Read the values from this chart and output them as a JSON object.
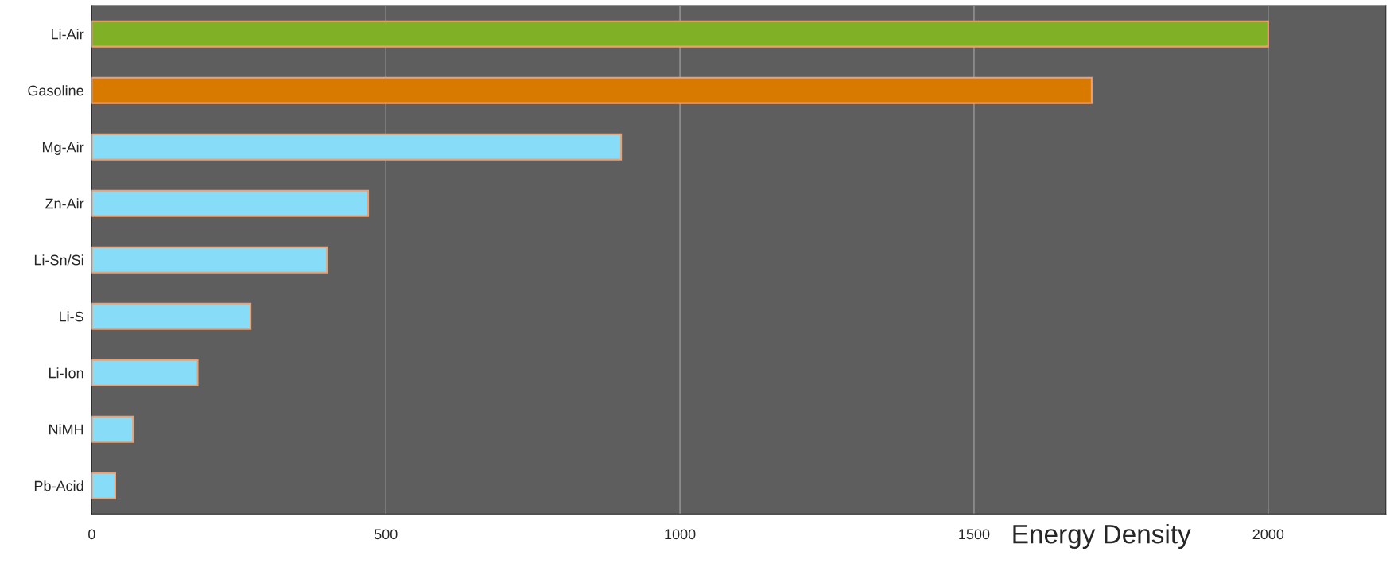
{
  "chart_data": {
    "type": "bar",
    "orientation": "horizontal",
    "xlabel": "Energy Density",
    "categories": [
      "Li-Air",
      "Gasoline",
      "Mg-Air",
      "Zn-Air",
      "Li-Sn/Si",
      "Li-S",
      "Li-Ion",
      "NiMH",
      "Pb-Acid"
    ],
    "values": [
      2000,
      1700,
      900,
      470,
      400,
      270,
      180,
      70,
      40
    ],
    "colors": [
      "#7fb026",
      "#d97a00",
      "#87dcf7",
      "#87dcf7",
      "#87dcf7",
      "#87dcf7",
      "#87dcf7",
      "#87dcf7",
      "#87dcf7"
    ],
    "xlim": [
      0,
      2200
    ],
    "xticks": [
      0,
      500,
      1000,
      1500,
      2000
    ],
    "grid": "x"
  }
}
